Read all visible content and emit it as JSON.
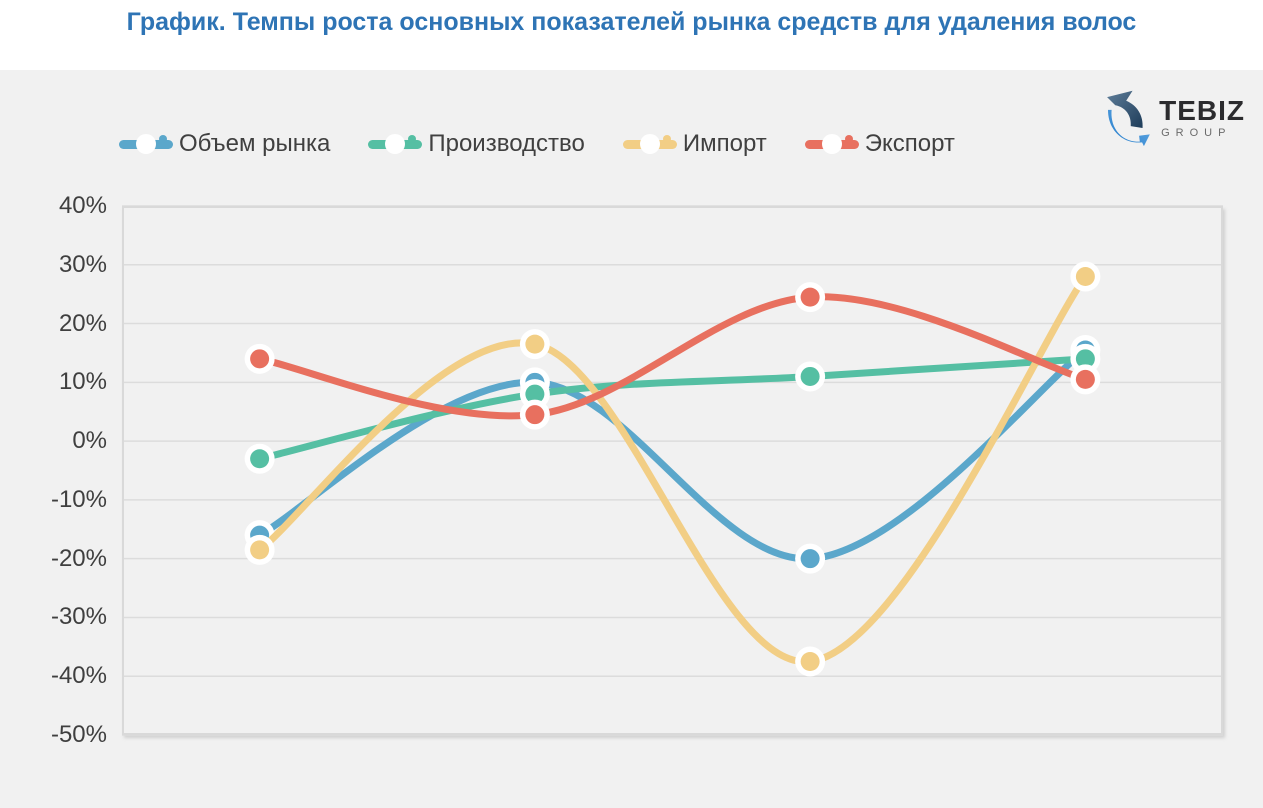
{
  "page_title": "График. Темпы роста основных показателей рынка средств для удаления волос",
  "logo": {
    "name": "TEBIZ",
    "group": "GROUP"
  },
  "colors": {
    "title": "#2E74B5",
    "panel_bg": "#F1F1F1",
    "grid_line": "#DCDCDC",
    "plot_border": "#D9D9D9",
    "text": "#404040"
  },
  "chart_data": {
    "type": "line",
    "title": "График. Темпы роста основных показателей рынка средств для удаления волос",
    "line_style": "smooth",
    "marker": "circle-with-white-ring",
    "grid": true,
    "legend_position": "top",
    "x_labels": [
      "",
      "",
      "",
      ""
    ],
    "xlabel": "",
    "ylabel": "",
    "ylim": [
      -50,
      40
    ],
    "y_tick_step": 10,
    "y_tick_labels": [
      "40%",
      "30%",
      "20%",
      "10%",
      "0%",
      "-10%",
      "-20%",
      "-30%",
      "-40%",
      "-50%"
    ],
    "series": [
      {
        "name": "Объем рынка",
        "color": "#5BA7CB",
        "values": [
          -16,
          10,
          -20,
          15.5
        ]
      },
      {
        "name": "Производство",
        "color": "#55BFA3",
        "values": [
          -3,
          8,
          11,
          14
        ]
      },
      {
        "name": "Импорт",
        "color": "#F2CE85",
        "values": [
          -18.5,
          16.5,
          -37.5,
          28
        ]
      },
      {
        "name": "Экспорт",
        "color": "#E8705F",
        "values": [
          14,
          4.5,
          24.5,
          10.5
        ]
      }
    ]
  }
}
